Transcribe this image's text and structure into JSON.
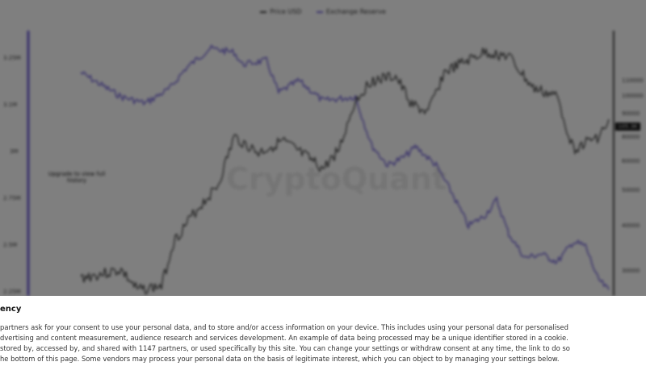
{
  "chart": {
    "legend": [
      {
        "label": "Price USD",
        "color": "#333333"
      },
      {
        "label": "Exchange Reserve",
        "color": "#6b5bd6"
      }
    ],
    "left_axis": [
      "3.25M",
      "3.1M",
      "3M",
      "2.75M",
      "2.5M",
      "2.25M"
    ],
    "right_axis": [
      "110000",
      "100000",
      "90000",
      "80000",
      "60000",
      "50000",
      "40000",
      "30000"
    ],
    "price_tag": "105.3K",
    "upgrade_note": "Upgrade to view full history",
    "watermark": "CryptoQuant"
  },
  "consent": {
    "title": "ency",
    "lines": [
      "partners ask for your consent to use your personal data, and to store and/or access information on your device. This includes using your personal data for personalised",
      "dvertising and content measurement, audience research and services development. An example of data being processed may be a unique identifier stored in a cookie.",
      "stored by, accessed by, and shared with 1147 partners, or used specifically by this site. You can change your settings or withdraw consent at any time, the link to do so",
      "he bottom of this page. Some vendors may process your personal data on the basis of legitimate interest, which you can object to by managing your settings below."
    ]
  }
}
